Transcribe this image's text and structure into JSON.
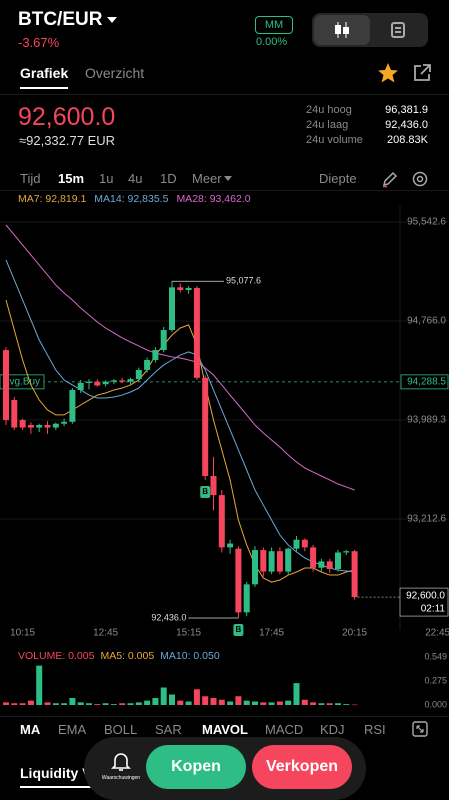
{
  "header": {
    "pair": "BTC/EUR",
    "change": "-3.67%",
    "margin_badge": "MM",
    "margin_level": "0.00%"
  },
  "tabs": [
    "Grafiek",
    "Overzicht"
  ],
  "price": {
    "last": "92,600.0",
    "fiat": "≈92,332.77 EUR"
  },
  "stats": [
    {
      "label": "24u hoog",
      "value": "96,381.9"
    },
    {
      "label": "24u laag",
      "value": "92,436.0"
    },
    {
      "label": "24u volume",
      "value": "208.83K"
    }
  ],
  "intervals": [
    "Tijd",
    "15m",
    "1u",
    "4u",
    "1D",
    "Meer"
  ],
  "depth": "Diepte",
  "chart_data": [
    {
      "type": "candlestick",
      "up_color": "#2ebd85",
      "down_color": "#f6465d",
      "open": [
        94538,
        94146,
        93989,
        93950,
        93930,
        93950,
        93930,
        93960,
        93975,
        94225,
        94280,
        94290,
        94270,
        94290,
        94300,
        94290,
        94310,
        94382,
        94460,
        94538,
        94695,
        95030,
        95009,
        95025,
        94320,
        93550,
        93400,
        92990,
        92980,
        92480,
        92700,
        92969,
        92800,
        92960,
        92800,
        92980,
        93050,
        92990,
        92830,
        92880,
        92820,
        92950,
        92960
      ],
      "high": [
        94560,
        94170,
        94000,
        93970,
        93960,
        93980,
        93970,
        94000,
        94240,
        94303,
        94310,
        94310,
        94300,
        94310,
        94320,
        94320,
        94400,
        94480,
        94560,
        94720,
        95077.6,
        95060,
        95040,
        95040,
        94340,
        93700,
        93440,
        93050,
        93000,
        92720,
        93000,
        92990,
        92990,
        92990,
        92990,
        93080,
        93060,
        93010,
        92900,
        92900,
        92970,
        92970,
        92970
      ],
      "low": [
        93950,
        93911,
        93911,
        93880,
        93895,
        93880,
        93911,
        93940,
        93960,
        94200,
        94230,
        94250,
        94250,
        94270,
        94280,
        94270,
        94290,
        94360,
        94440,
        94520,
        94680,
        94990,
        94980,
        94303,
        93519,
        93280,
        92950,
        92940,
        92436,
        92450,
        92680,
        92760,
        92780,
        92780,
        92780,
        92960,
        92960,
        92800,
        92800,
        92790,
        92800,
        92930,
        92580
      ],
      "close": [
        93989,
        93930,
        93930,
        93930,
        93950,
        93930,
        93960,
        93975,
        94225,
        94280,
        94290,
        94260,
        94290,
        94300,
        94290,
        94310,
        94382,
        94460,
        94538,
        94695,
        95030,
        95009,
        95025,
        94320,
        93550,
        93400,
        92990,
        93020,
        92480,
        92700,
        92969,
        92800,
        92960,
        92800,
        92980,
        93050,
        92990,
        92830,
        92880,
        92820,
        92950,
        92960,
        92600
      ],
      "ma": [
        {
          "label": "MA7: 92,819.1",
          "color": "#e8a838",
          "values": [
            94931,
            94695,
            94460,
            94264,
            94146,
            94068,
            94029,
            94029,
            94068,
            94107,
            94146,
            94185,
            94201,
            94225,
            94240,
            94264,
            94303,
            94382,
            94499,
            94578,
            94656,
            94711,
            94735,
            94578,
            94264,
            93989,
            93754,
            93519,
            93205,
            93009,
            92852,
            92750,
            92718,
            92734,
            92773,
            92797,
            92828,
            92828,
            92797,
            92773,
            92773,
            92797,
            92812
          ]
        },
        {
          "label": "MA14: 92,835.5",
          "color": "#6aa9d8",
          "values": [
            95245,
            95088,
            94931,
            94774,
            94617,
            94499,
            94382,
            94303,
            94264,
            94225,
            94185,
            94162,
            94162,
            94170,
            94185,
            94209,
            94240,
            94303,
            94366,
            94421,
            94460,
            94499,
            94523,
            94499,
            94382,
            94225,
            94068,
            93911,
            93754,
            93597,
            93440,
            93322,
            93205,
            93087,
            93009,
            92954,
            92907,
            92876,
            92852,
            92828,
            92812,
            92805,
            92797
          ]
        },
        {
          "label": "MA28: 93,462.0",
          "color": "#d96ac8",
          "values": [
            95519,
            95441,
            95362,
            95284,
            95205,
            95127,
            95048,
            94986,
            94931,
            94868,
            94813,
            94758,
            94711,
            94672,
            94633,
            94601,
            94570,
            94538,
            94515,
            94499,
            94484,
            94476,
            94460,
            94444,
            94397,
            94342,
            94264,
            94185,
            94107,
            94029,
            93950,
            93887,
            93832,
            93777,
            93715,
            93660,
            93613,
            93581,
            93550,
            93519,
            93487,
            93464,
            93440
          ]
        }
      ],
      "xticks": [
        "10:15",
        "12:45",
        "15:15",
        "17:45",
        "20:15",
        "22:45"
      ],
      "ylim": [
        92404.6,
        95636.7
      ],
      "yticks": [
        {
          "value": 95542.6,
          "label": "95,542.6"
        },
        {
          "value": 94766,
          "label": "94,766.0"
        },
        {
          "value": 93989.3,
          "label": "93,989.3"
        },
        {
          "value": 93212.6,
          "label": "93,212.6"
        }
      ],
      "grid": true,
      "high_marker": {
        "value": 95077.6,
        "label": "95,077.6"
      },
      "low_marker": {
        "value": 92436,
        "label": "92,436.0"
      },
      "last_price": {
        "value": 92600,
        "label": "92,600.0",
        "countdown": "02:11"
      },
      "avg_buy": {
        "value": 94288.5,
        "label": "94,288.5",
        "name": "Avg.Buy"
      },
      "buy_marker": "B"
    },
    {
      "type": "bar",
      "legend": [
        {
          "label": "VOLUME: 0.005",
          "color": "#f6465d"
        },
        {
          "label": "MA5: 0.005",
          "color": "#e8a838"
        },
        {
          "label": "MA10: 0.050",
          "color": "#6aa9d8"
        }
      ],
      "values": [
        0.03,
        0.02,
        0.02,
        0.05,
        0.45,
        0.03,
        0.02,
        0.02,
        0.08,
        0.03,
        0.02,
        0.01,
        0.02,
        0.01,
        0.02,
        0.02,
        0.03,
        0.05,
        0.08,
        0.2,
        0.12,
        0.05,
        0.04,
        0.18,
        0.1,
        0.08,
        0.06,
        0.04,
        0.1,
        0.05,
        0.04,
        0.03,
        0.03,
        0.04,
        0.05,
        0.25,
        0.06,
        0.03,
        0.02,
        0.02,
        0.02,
        0.01,
        0.005
      ],
      "ylim": [
        0,
        0.549
      ],
      "yticks": [
        0.549,
        0.275,
        {
          "value": 0,
          "label": "0.000"
        }
      ]
    }
  ],
  "indicators": [
    "MA",
    "EMA",
    "BOLL",
    "SAR",
    "MAVOL",
    "MACD",
    "KDJ",
    "RSI"
  ],
  "bottom": {
    "tab": "Liquidity V",
    "alerts": "Waarschuwingen",
    "buy": "Kopen",
    "sell": "Verkopen"
  }
}
